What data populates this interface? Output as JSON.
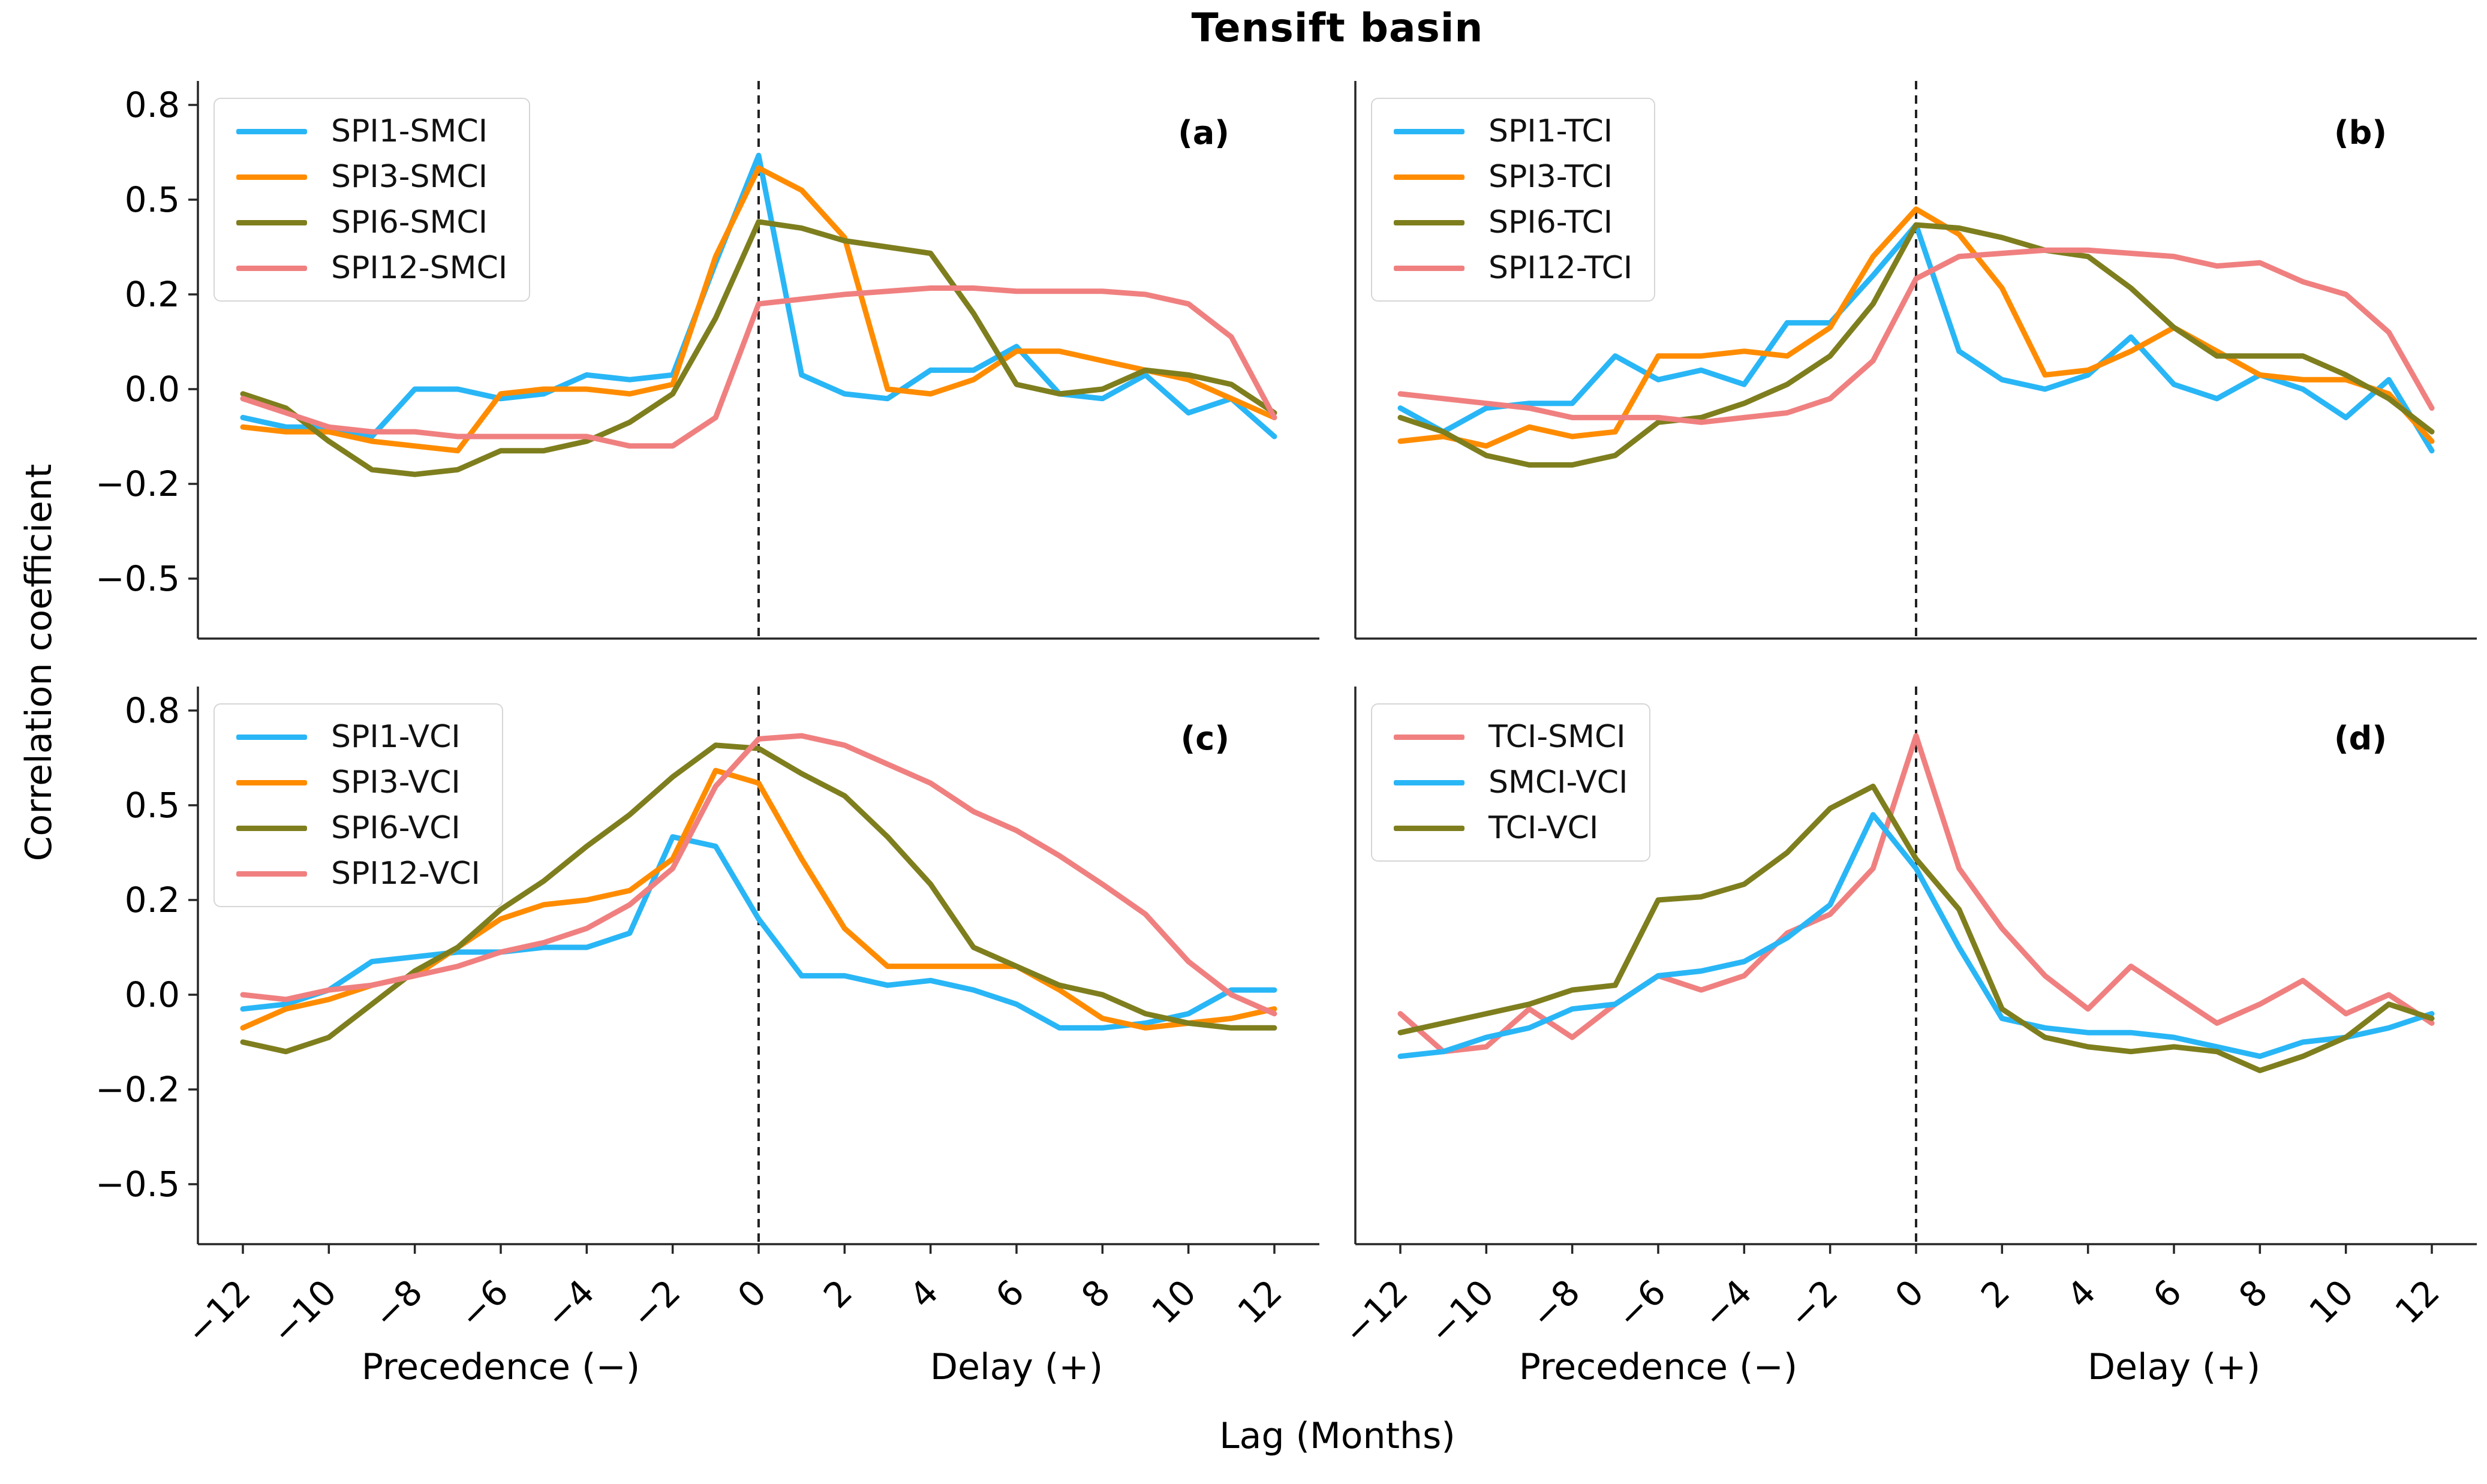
{
  "title": "Tensift basin",
  "axes": {
    "y_label": "Correlation coefficient",
    "x_label": "Lag (Months)",
    "precedence_label": "Precedence (−)",
    "delay_label": "Delay (+)",
    "y_tick_labels": [
      "0.8",
      "0.5",
      "0.2",
      "0.0",
      "−0.2",
      "−0.5"
    ],
    "x_tick_labels": [
      "−12",
      "−10",
      "−8",
      "−6",
      "−4",
      "−2",
      "0",
      "2",
      "4",
      "6",
      "8",
      "10",
      "12"
    ]
  },
  "colors": {
    "blue": "#29B6F6",
    "orange": "#FF8C00",
    "olive": "#7E7E1E",
    "pink": "#F08080",
    "dashed_line": "#222222",
    "spine": "#262626"
  },
  "chart_data": {
    "type": "line",
    "x": [
      -12,
      -11,
      -10,
      -9,
      -8,
      -7,
      -6,
      -5,
      -4,
      -3,
      -2,
      -1,
      0,
      1,
      2,
      3,
      4,
      5,
      6,
      7,
      8,
      9,
      10,
      11,
      12
    ],
    "x_tick_values": [
      -12,
      -10,
      -8,
      -6,
      -4,
      -2,
      0,
      2,
      4,
      6,
      8,
      10,
      12
    ],
    "y_tick_values": [
      0.8,
      0.5,
      0.2,
      0.0,
      -0.2,
      -0.5
    ],
    "xlim": [
      -13,
      13
    ],
    "ylim": [
      -0.72,
      0.9
    ],
    "grid": false,
    "zero_lag_dashed_line": true,
    "legend_position": "upper left",
    "xlabel": "Lag (Months)",
    "ylabel": "Correlation coefficient",
    "title": "Tensift basin",
    "panels": [
      {
        "id": "a",
        "letter": "(a)",
        "series": [
          {
            "name": "SPI1-SMCI",
            "color": "#29B6F6",
            "values": [
              -0.06,
              -0.08,
              -0.08,
              -0.1,
              0.0,
              0.0,
              -0.02,
              -0.01,
              0.03,
              0.02,
              0.03,
              0.3,
              0.64,
              0.03,
              -0.01,
              -0.02,
              0.04,
              0.04,
              0.09,
              -0.01,
              -0.02,
              0.03,
              -0.05,
              -0.02,
              -0.1
            ]
          },
          {
            "name": "SPI3-SMCI",
            "color": "#FF8C00",
            "values": [
              -0.08,
              -0.09,
              -0.09,
              -0.11,
              -0.12,
              -0.13,
              -0.01,
              0.0,
              0.0,
              -0.01,
              0.01,
              0.32,
              0.6,
              0.53,
              0.38,
              0.0,
              -0.01,
              0.02,
              0.08,
              0.08,
              0.06,
              0.04,
              0.02,
              -0.02,
              -0.06
            ]
          },
          {
            "name": "SPI6-SMCI",
            "color": "#7E7E1E",
            "values": [
              -0.01,
              -0.04,
              -0.11,
              -0.17,
              -0.18,
              -0.17,
              -0.13,
              -0.13,
              -0.11,
              -0.07,
              -0.01,
              0.15,
              0.43,
              0.41,
              0.37,
              0.35,
              0.33,
              0.16,
              0.01,
              -0.01,
              0.0,
              0.04,
              0.03,
              0.01,
              -0.05
            ]
          },
          {
            "name": "SPI12-SMCI",
            "color": "#F08080",
            "values": [
              -0.02,
              -0.05,
              -0.08,
              -0.09,
              -0.09,
              -0.1,
              -0.1,
              -0.1,
              -0.1,
              -0.12,
              -0.12,
              -0.06,
              0.18,
              0.19,
              0.2,
              0.21,
              0.22,
              0.22,
              0.21,
              0.21,
              0.21,
              0.2,
              0.18,
              0.11,
              -0.06
            ]
          }
        ]
      },
      {
        "id": "b",
        "letter": "(b)",
        "series": [
          {
            "name": "SPI1-TCI",
            "color": "#29B6F6",
            "values": [
              -0.04,
              -0.09,
              -0.04,
              -0.03,
              -0.03,
              0.07,
              0.02,
              0.04,
              0.01,
              0.14,
              0.14,
              0.26,
              0.42,
              0.08,
              0.02,
              0.0,
              0.03,
              0.11,
              0.01,
              -0.02,
              0.03,
              0.0,
              -0.06,
              0.02,
              -0.13
            ]
          },
          {
            "name": "SPI3-TCI",
            "color": "#FF8C00",
            "values": [
              -0.11,
              -0.1,
              -0.12,
              -0.08,
              -0.1,
              -0.09,
              0.07,
              0.07,
              0.08,
              0.07,
              0.13,
              0.32,
              0.47,
              0.39,
              0.22,
              0.03,
              0.04,
              0.08,
              0.13,
              0.08,
              0.03,
              0.02,
              0.02,
              -0.01,
              -0.11
            ]
          },
          {
            "name": "SPI6-TCI",
            "color": "#7E7E1E",
            "values": [
              -0.06,
              -0.09,
              -0.14,
              -0.16,
              -0.16,
              -0.14,
              -0.07,
              -0.06,
              -0.03,
              0.01,
              0.07,
              0.18,
              0.42,
              0.41,
              0.38,
              0.34,
              0.32,
              0.22,
              0.13,
              0.07,
              0.07,
              0.07,
              0.03,
              -0.02,
              -0.09
            ]
          },
          {
            "name": "SPI12-TCI",
            "color": "#F08080",
            "values": [
              -0.01,
              -0.02,
              -0.03,
              -0.04,
              -0.06,
              -0.06,
              -0.06,
              -0.07,
              -0.06,
              -0.05,
              -0.02,
              0.06,
              0.25,
              0.32,
              0.33,
              0.34,
              0.34,
              0.33,
              0.32,
              0.29,
              0.3,
              0.24,
              0.2,
              0.12,
              -0.04
            ]
          }
        ]
      },
      {
        "id": "c",
        "letter": "(c)",
        "series": [
          {
            "name": "SPI1-VCI",
            "color": "#29B6F6",
            "values": [
              -0.03,
              -0.02,
              0.01,
              0.07,
              0.08,
              0.09,
              0.09,
              0.1,
              0.1,
              0.13,
              0.4,
              0.37,
              0.16,
              0.04,
              0.04,
              0.02,
              0.03,
              0.01,
              -0.02,
              -0.07,
              -0.07,
              -0.06,
              -0.04,
              0.01,
              0.01
            ]
          },
          {
            "name": "SPI3-VCI",
            "color": "#FF8C00",
            "values": [
              -0.07,
              -0.03,
              -0.01,
              0.02,
              0.04,
              0.1,
              0.16,
              0.19,
              0.2,
              0.23,
              0.33,
              0.61,
              0.57,
              0.33,
              0.14,
              0.06,
              0.06,
              0.06,
              0.06,
              0.01,
              -0.05,
              -0.07,
              -0.06,
              -0.05,
              -0.03
            ]
          },
          {
            "name": "SPI6-VCI",
            "color": "#7E7E1E",
            "values": [
              -0.1,
              -0.12,
              -0.09,
              -0.02,
              0.05,
              0.1,
              0.18,
              0.26,
              0.37,
              0.47,
              0.59,
              0.69,
              0.68,
              0.6,
              0.53,
              0.4,
              0.25,
              0.1,
              0.06,
              0.02,
              0.0,
              -0.04,
              -0.06,
              -0.07,
              -0.07
            ]
          },
          {
            "name": "SPI12-VCI",
            "color": "#F08080",
            "values": [
              0.0,
              -0.01,
              0.01,
              0.02,
              0.04,
              0.06,
              0.09,
              0.11,
              0.14,
              0.19,
              0.3,
              0.56,
              0.71,
              0.72,
              0.69,
              0.63,
              0.57,
              0.48,
              0.42,
              0.34,
              0.25,
              0.17,
              0.07,
              0.0,
              -0.04
            ]
          }
        ]
      },
      {
        "id": "d",
        "letter": "(d)",
        "series": [
          {
            "name": "TCI-SMCI",
            "color": "#F08080",
            "values": [
              -0.04,
              -0.12,
              -0.11,
              -0.03,
              -0.09,
              -0.02,
              0.04,
              0.01,
              0.04,
              0.13,
              0.17,
              0.3,
              0.72,
              0.3,
              0.14,
              0.04,
              -0.03,
              0.06,
              0.0,
              -0.06,
              -0.02,
              0.03,
              -0.04,
              0.0,
              -0.06
            ]
          },
          {
            "name": "SMCI-VCI",
            "color": "#29B6F6",
            "values": [
              -0.13,
              -0.12,
              -0.09,
              -0.07,
              -0.03,
              -0.02,
              0.04,
              0.05,
              0.07,
              0.12,
              0.19,
              0.47,
              0.3,
              0.1,
              -0.05,
              -0.07,
              -0.08,
              -0.08,
              -0.09,
              -0.11,
              -0.13,
              -0.1,
              -0.09,
              -0.07,
              -0.04
            ]
          },
          {
            "name": "TCI-VCI",
            "color": "#7E7E1E",
            "values": [
              -0.08,
              -0.06,
              -0.04,
              -0.02,
              0.01,
              0.02,
              0.2,
              0.21,
              0.25,
              0.35,
              0.49,
              0.56,
              0.33,
              0.18,
              -0.03,
              -0.09,
              -0.11,
              -0.12,
              -0.11,
              -0.12,
              -0.16,
              -0.13,
              -0.09,
              -0.02,
              -0.05
            ]
          }
        ]
      }
    ]
  }
}
